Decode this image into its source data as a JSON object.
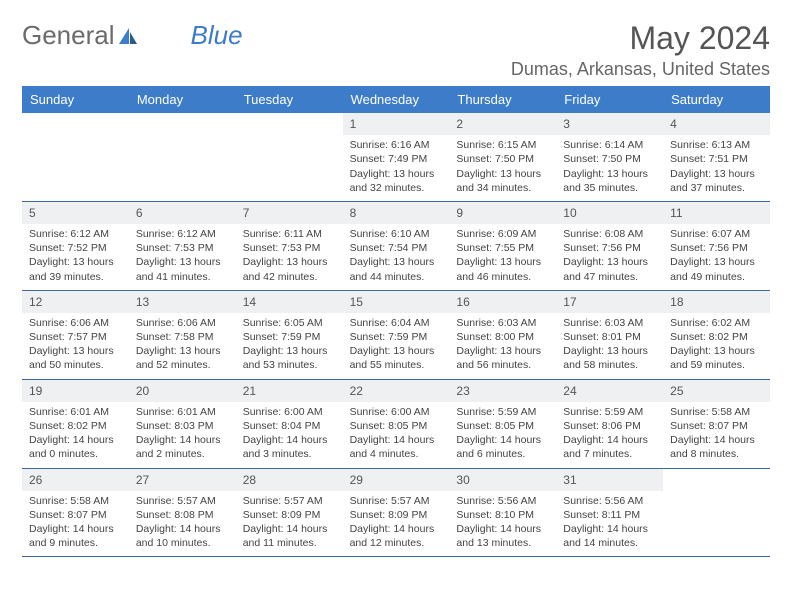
{
  "brand": {
    "part1": "General",
    "part2": "Blue"
  },
  "title": "May 2024",
  "location": "Dumas, Arkansas, United States",
  "colors": {
    "header_bg": "#3d7cc9",
    "header_text": "#ffffff",
    "daynum_bg": "#eef0f2",
    "border": "#3d6a9a",
    "text": "#4a4a4a",
    "brand_gray": "#6b6b6b",
    "brand_blue": "#3d7cc9"
  },
  "weekdays": [
    "Sunday",
    "Monday",
    "Tuesday",
    "Wednesday",
    "Thursday",
    "Friday",
    "Saturday"
  ],
  "weeks": [
    [
      {
        "day": "",
        "lines": []
      },
      {
        "day": "",
        "lines": []
      },
      {
        "day": "",
        "lines": []
      },
      {
        "day": "1",
        "lines": [
          "Sunrise: 6:16 AM",
          "Sunset: 7:49 PM",
          "Daylight: 13 hours",
          "and 32 minutes."
        ]
      },
      {
        "day": "2",
        "lines": [
          "Sunrise: 6:15 AM",
          "Sunset: 7:50 PM",
          "Daylight: 13 hours",
          "and 34 minutes."
        ]
      },
      {
        "day": "3",
        "lines": [
          "Sunrise: 6:14 AM",
          "Sunset: 7:50 PM",
          "Daylight: 13 hours",
          "and 35 minutes."
        ]
      },
      {
        "day": "4",
        "lines": [
          "Sunrise: 6:13 AM",
          "Sunset: 7:51 PM",
          "Daylight: 13 hours",
          "and 37 minutes."
        ]
      }
    ],
    [
      {
        "day": "5",
        "lines": [
          "Sunrise: 6:12 AM",
          "Sunset: 7:52 PM",
          "Daylight: 13 hours",
          "and 39 minutes."
        ]
      },
      {
        "day": "6",
        "lines": [
          "Sunrise: 6:12 AM",
          "Sunset: 7:53 PM",
          "Daylight: 13 hours",
          "and 41 minutes."
        ]
      },
      {
        "day": "7",
        "lines": [
          "Sunrise: 6:11 AM",
          "Sunset: 7:53 PM",
          "Daylight: 13 hours",
          "and 42 minutes."
        ]
      },
      {
        "day": "8",
        "lines": [
          "Sunrise: 6:10 AM",
          "Sunset: 7:54 PM",
          "Daylight: 13 hours",
          "and 44 minutes."
        ]
      },
      {
        "day": "9",
        "lines": [
          "Sunrise: 6:09 AM",
          "Sunset: 7:55 PM",
          "Daylight: 13 hours",
          "and 46 minutes."
        ]
      },
      {
        "day": "10",
        "lines": [
          "Sunrise: 6:08 AM",
          "Sunset: 7:56 PM",
          "Daylight: 13 hours",
          "and 47 minutes."
        ]
      },
      {
        "day": "11",
        "lines": [
          "Sunrise: 6:07 AM",
          "Sunset: 7:56 PM",
          "Daylight: 13 hours",
          "and 49 minutes."
        ]
      }
    ],
    [
      {
        "day": "12",
        "lines": [
          "Sunrise: 6:06 AM",
          "Sunset: 7:57 PM",
          "Daylight: 13 hours",
          "and 50 minutes."
        ]
      },
      {
        "day": "13",
        "lines": [
          "Sunrise: 6:06 AM",
          "Sunset: 7:58 PM",
          "Daylight: 13 hours",
          "and 52 minutes."
        ]
      },
      {
        "day": "14",
        "lines": [
          "Sunrise: 6:05 AM",
          "Sunset: 7:59 PM",
          "Daylight: 13 hours",
          "and 53 minutes."
        ]
      },
      {
        "day": "15",
        "lines": [
          "Sunrise: 6:04 AM",
          "Sunset: 7:59 PM",
          "Daylight: 13 hours",
          "and 55 minutes."
        ]
      },
      {
        "day": "16",
        "lines": [
          "Sunrise: 6:03 AM",
          "Sunset: 8:00 PM",
          "Daylight: 13 hours",
          "and 56 minutes."
        ]
      },
      {
        "day": "17",
        "lines": [
          "Sunrise: 6:03 AM",
          "Sunset: 8:01 PM",
          "Daylight: 13 hours",
          "and 58 minutes."
        ]
      },
      {
        "day": "18",
        "lines": [
          "Sunrise: 6:02 AM",
          "Sunset: 8:02 PM",
          "Daylight: 13 hours",
          "and 59 minutes."
        ]
      }
    ],
    [
      {
        "day": "19",
        "lines": [
          "Sunrise: 6:01 AM",
          "Sunset: 8:02 PM",
          "Daylight: 14 hours",
          "and 0 minutes."
        ]
      },
      {
        "day": "20",
        "lines": [
          "Sunrise: 6:01 AM",
          "Sunset: 8:03 PM",
          "Daylight: 14 hours",
          "and 2 minutes."
        ]
      },
      {
        "day": "21",
        "lines": [
          "Sunrise: 6:00 AM",
          "Sunset: 8:04 PM",
          "Daylight: 14 hours",
          "and 3 minutes."
        ]
      },
      {
        "day": "22",
        "lines": [
          "Sunrise: 6:00 AM",
          "Sunset: 8:05 PM",
          "Daylight: 14 hours",
          "and 4 minutes."
        ]
      },
      {
        "day": "23",
        "lines": [
          "Sunrise: 5:59 AM",
          "Sunset: 8:05 PM",
          "Daylight: 14 hours",
          "and 6 minutes."
        ]
      },
      {
        "day": "24",
        "lines": [
          "Sunrise: 5:59 AM",
          "Sunset: 8:06 PM",
          "Daylight: 14 hours",
          "and 7 minutes."
        ]
      },
      {
        "day": "25",
        "lines": [
          "Sunrise: 5:58 AM",
          "Sunset: 8:07 PM",
          "Daylight: 14 hours",
          "and 8 minutes."
        ]
      }
    ],
    [
      {
        "day": "26",
        "lines": [
          "Sunrise: 5:58 AM",
          "Sunset: 8:07 PM",
          "Daylight: 14 hours",
          "and 9 minutes."
        ]
      },
      {
        "day": "27",
        "lines": [
          "Sunrise: 5:57 AM",
          "Sunset: 8:08 PM",
          "Daylight: 14 hours",
          "and 10 minutes."
        ]
      },
      {
        "day": "28",
        "lines": [
          "Sunrise: 5:57 AM",
          "Sunset: 8:09 PM",
          "Daylight: 14 hours",
          "and 11 minutes."
        ]
      },
      {
        "day": "29",
        "lines": [
          "Sunrise: 5:57 AM",
          "Sunset: 8:09 PM",
          "Daylight: 14 hours",
          "and 12 minutes."
        ]
      },
      {
        "day": "30",
        "lines": [
          "Sunrise: 5:56 AM",
          "Sunset: 8:10 PM",
          "Daylight: 14 hours",
          "and 13 minutes."
        ]
      },
      {
        "day": "31",
        "lines": [
          "Sunrise: 5:56 AM",
          "Sunset: 8:11 PM",
          "Daylight: 14 hours",
          "and 14 minutes."
        ]
      },
      {
        "day": "",
        "lines": []
      }
    ]
  ]
}
